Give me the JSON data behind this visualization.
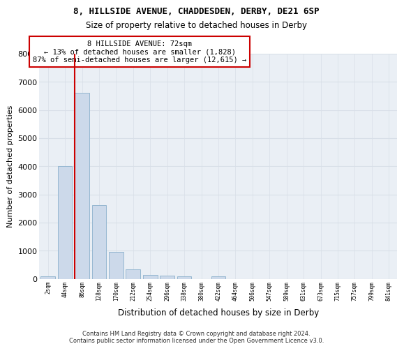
{
  "title1": "8, HILLSIDE AVENUE, CHADDESDEN, DERBY, DE21 6SP",
  "title2": "Size of property relative to detached houses in Derby",
  "xlabel": "Distribution of detached houses by size in Derby",
  "ylabel": "Number of detached properties",
  "bar_color": "#ccd9ea",
  "bar_edge_color": "#8ab0cc",
  "bg_color": "#eaeff5",
  "grid_color": "#d8dfe8",
  "annotation_text": "8 HILLSIDE AVENUE: 72sqm\n← 13% of detached houses are smaller (1,828)\n87% of semi-detached houses are larger (12,615) →",
  "marker_color": "#cc0000",
  "footer1": "Contains HM Land Registry data © Crown copyright and database right 2024.",
  "footer2": "Contains public sector information licensed under the Open Government Licence v3.0.",
  "categories": [
    "2sqm",
    "44sqm",
    "86sqm",
    "128sqm",
    "170sqm",
    "212sqm",
    "254sqm",
    "296sqm",
    "338sqm",
    "380sqm",
    "422sqm",
    "464sqm",
    "506sqm",
    "547sqm",
    "589sqm",
    "631sqm",
    "673sqm",
    "715sqm",
    "757sqm",
    "799sqm",
    "841sqm"
  ],
  "bar_heights": [
    75,
    4000,
    6600,
    2620,
    950,
    330,
    130,
    110,
    75,
    0,
    75,
    0,
    0,
    0,
    0,
    0,
    0,
    0,
    0,
    0,
    0
  ],
  "ylim": [
    0,
    8000
  ],
  "yticks": [
    0,
    1000,
    2000,
    3000,
    4000,
    5000,
    6000,
    7000,
    8000
  ]
}
